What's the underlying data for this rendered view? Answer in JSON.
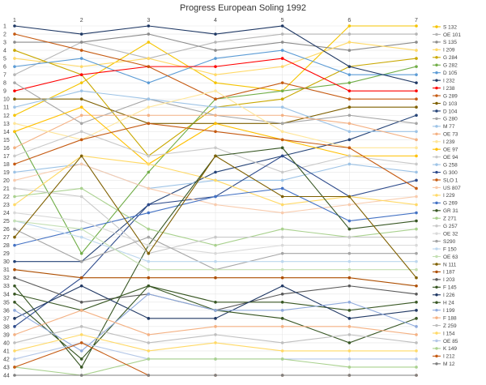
{
  "chart_data": {
    "type": "line",
    "title": "Progress European Soling 1992",
    "x": [
      1,
      2,
      3,
      4,
      5,
      6,
      7
    ],
    "ylim": [
      1,
      44
    ],
    "y_reversed": true,
    "y_ticks": [
      1,
      2,
      3,
      4,
      5,
      6,
      7,
      8,
      9,
      10,
      11,
      12,
      13,
      14,
      15,
      16,
      17,
      18,
      19,
      20,
      21,
      22,
      23,
      24,
      25,
      26,
      27,
      28,
      29,
      30,
      31,
      32,
      33,
      34,
      35,
      36,
      37,
      38,
      39,
      40,
      41,
      42,
      43,
      44
    ],
    "grid": true,
    "legend_position": "right",
    "series": [
      {
        "name": "S 132",
        "color": "#f5c400",
        "values": [
          12,
          8,
          3,
          8,
          9,
          1,
          1
        ]
      },
      {
        "name": "OE 101",
        "color": "#b5b5b5",
        "values": [
          7,
          3,
          5,
          3,
          2,
          2,
          2
        ]
      },
      {
        "name": "S 135",
        "color": "#8c8c8c",
        "values": [
          3,
          3,
          2,
          4,
          3,
          4,
          3
        ]
      },
      {
        "name": "I 209",
        "color": "#ffd966",
        "values": [
          5,
          6,
          5,
          7,
          6,
          3,
          4
        ]
      },
      {
        "name": "G 284",
        "color": "#c9a800",
        "values": [
          4,
          7,
          17,
          11,
          10,
          6,
          5
        ]
      },
      {
        "name": "G 282",
        "color": "#70ad47",
        "values": [
          14,
          29,
          19,
          10,
          9,
          8,
          6
        ]
      },
      {
        "name": "D 105",
        "color": "#5b9bd5",
        "values": [
          6,
          5,
          8,
          5,
          4,
          7,
          7
        ]
      },
      {
        "name": "I 232",
        "color": "#1f3864",
        "values": [
          1,
          2,
          1,
          2,
          1,
          6,
          8
        ]
      },
      {
        "name": "I 238",
        "color": "#ff0000",
        "values": [
          9,
          7,
          6,
          6,
          5,
          9,
          9
        ]
      },
      {
        "name": "G 289",
        "color": "#c55a11",
        "values": [
          2,
          4,
          6,
          10,
          8,
          10,
          10
        ]
      },
      {
        "name": "D 103",
        "color": "#7f6000",
        "values": [
          10,
          10,
          13,
          13,
          13,
          11,
          11
        ]
      },
      {
        "name": "D 104",
        "color": "#264478",
        "values": [
          30,
          30,
          23,
          19,
          17,
          15,
          12
        ]
      },
      {
        "name": "G 280",
        "color": "#a5a5a5",
        "values": [
          8,
          13,
          10,
          12,
          13,
          12,
          13
        ]
      },
      {
        "name": "M 77",
        "color": "#9dc3e6",
        "values": [
          11,
          9,
          10,
          11,
          11,
          14,
          14
        ]
      },
      {
        "name": "OE 73",
        "color": "#f4b183",
        "values": [
          16,
          12,
          12,
          12,
          12,
          13,
          15
        ]
      },
      {
        "name": "I 239",
        "color": "#ffe699",
        "values": [
          13,
          15,
          11,
          9,
          14,
          16,
          16
        ]
      },
      {
        "name": "OE 97",
        "color": "#ffc000",
        "values": [
          14,
          11,
          18,
          13,
          15,
          17,
          17
        ]
      },
      {
        "name": "OE 94",
        "color": "#c9c9c9",
        "values": [
          17,
          14,
          17,
          16,
          19,
          17,
          18
        ]
      },
      {
        "name": "G 258",
        "color": "#9dc3e6",
        "values": [
          19,
          18,
          21,
          20,
          20,
          18,
          19
        ]
      },
      {
        "name": "G 300",
        "color": "#2e4b8c",
        "values": [
          38,
          32,
          23,
          22,
          17,
          22,
          20
        ]
      },
      {
        "name": "SLO 1",
        "color": "#c55a11",
        "values": [
          18,
          15,
          13,
          14,
          15,
          16,
          21
        ]
      },
      {
        "name": "US 807",
        "color": "#f8cbad",
        "values": [
          20,
          18,
          21,
          23,
          24,
          23,
          22
        ]
      },
      {
        "name": "I 229",
        "color": "#ffd966",
        "values": [
          23,
          17,
          18,
          20,
          23,
          22,
          23
        ]
      },
      {
        "name": "G 269",
        "color": "#4472c4",
        "values": [
          28,
          26,
          24,
          22,
          21,
          25,
          24
        ]
      },
      {
        "name": "GR 31",
        "color": "#375623",
        "values": [
          33,
          43,
          28,
          17,
          16,
          26,
          25
        ]
      },
      {
        "name": "Z 271",
        "color": "#a9d18e",
        "values": [
          22,
          21,
          26,
          28,
          26,
          27,
          26
        ]
      },
      {
        "name": "G 257",
        "color": "#c9c9c9",
        "values": [
          21,
          22,
          29,
          27,
          27,
          27,
          27
        ]
      },
      {
        "name": "OE 32",
        "color": "#d9d9d9",
        "values": [
          24,
          25,
          28,
          29,
          28,
          28,
          28
        ]
      },
      {
        "name": "S290",
        "color": "#a5a5a5",
        "values": [
          26,
          30,
          27,
          31,
          29,
          29,
          29
        ]
      },
      {
        "name": "F 150",
        "color": "#bdd7ee",
        "values": [
          25,
          27,
          30,
          30,
          30,
          30,
          30
        ]
      },
      {
        "name": "OE 63",
        "color": "#c5e0b4",
        "values": [
          25,
          26,
          31,
          31,
          31,
          31,
          31
        ]
      },
      {
        "name": "N 111",
        "color": "#7f6000",
        "values": [
          27,
          17,
          29,
          17,
          22,
          22,
          32
        ]
      },
      {
        "name": "I 187",
        "color": "#ad4e00",
        "values": [
          31,
          32,
          32,
          32,
          32,
          32,
          33
        ]
      },
      {
        "name": "I 203",
        "color": "#595959",
        "values": [
          32,
          35,
          34,
          36,
          34,
          33,
          34
        ]
      },
      {
        "name": "F 145",
        "color": "#385723",
        "values": [
          34,
          36,
          33,
          35,
          35,
          36,
          35
        ]
      },
      {
        "name": "I 226",
        "color": "#203864",
        "values": [
          37,
          33,
          37,
          37,
          33,
          37,
          36
        ]
      },
      {
        "name": "H 24",
        "color": "#375623",
        "values": [
          35,
          42,
          33,
          36,
          37,
          40,
          37
        ]
      },
      {
        "name": "I 199",
        "color": "#8faadc",
        "values": [
          36,
          41,
          34,
          36,
          36,
          35,
          38
        ]
      },
      {
        "name": "F 188",
        "color": "#f4b183",
        "values": [
          39,
          36,
          39,
          38,
          38,
          38,
          39
        ]
      },
      {
        "name": "Z 259",
        "color": "#bfbfbf",
        "values": [
          40,
          38,
          40,
          39,
          40,
          39,
          40
        ]
      },
      {
        "name": "I 154",
        "color": "#ffd966",
        "values": [
          41,
          39,
          41,
          40,
          41,
          41,
          41
        ]
      },
      {
        "name": "OE 85",
        "color": "#b4c7e7",
        "values": [
          42,
          40,
          42,
          42,
          42,
          42,
          42
        ]
      },
      {
        "name": "K 149",
        "color": "#a9d18e",
        "values": [
          43,
          44,
          42,
          42,
          42,
          43,
          43
        ]
      },
      {
        "name": "I 212",
        "color": "#c55a11",
        "values": [
          43,
          40,
          44,
          44,
          44,
          44,
          44
        ]
      },
      {
        "name": "M 12",
        "color": "#7f7f7f",
        "values": [
          44,
          44,
          44,
          44,
          44,
          44,
          44
        ]
      }
    ]
  }
}
